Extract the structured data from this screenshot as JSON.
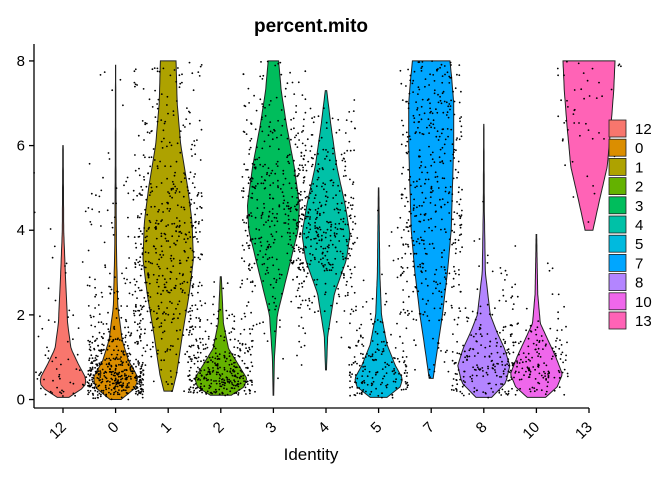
{
  "chart_data": {
    "type": "violin",
    "title": "percent.mito",
    "xlabel": "Identity",
    "ylabel": "",
    "ylim": [
      -0.2,
      8.4
    ],
    "yticks": [
      0,
      2,
      4,
      6,
      8
    ],
    "categories": [
      "12",
      "0",
      "1",
      "2",
      "3",
      "4",
      "5",
      "7",
      "8",
      "10",
      "13"
    ],
    "colors": [
      "#F8766D",
      "#DB8E00",
      "#AEA200",
      "#64B200",
      "#00BD5C",
      "#00C1A7",
      "#00BADE",
      "#00A6FF",
      "#B385FF",
      "#EF67EB",
      "#FF63B6"
    ],
    "legend": {
      "position": "right",
      "entries": [
        "12",
        "0",
        "1",
        "2",
        "3",
        "4",
        "5",
        "7",
        "8",
        "10",
        "13"
      ]
    },
    "series": [
      {
        "name": "12",
        "min": 0.05,
        "max": 6.0,
        "median": 0.5,
        "n": 70
      },
      {
        "name": "0",
        "min": 0.0,
        "max": 7.9,
        "median": 0.5,
        "n": 600
      },
      {
        "name": "1",
        "min": 0.2,
        "max": 8.0,
        "median": 2.8,
        "n": 700
      },
      {
        "name": "2",
        "min": 0.1,
        "max": 2.9,
        "median": 0.5,
        "n": 350
      },
      {
        "name": "3",
        "min": 0.1,
        "max": 8.0,
        "median": 4.5,
        "n": 400
      },
      {
        "name": "4",
        "min": 0.7,
        "max": 7.3,
        "median": 3.9,
        "n": 380
      },
      {
        "name": "5",
        "min": 0.05,
        "max": 5.0,
        "median": 0.5,
        "n": 200
      },
      {
        "name": "7",
        "min": 0.5,
        "max": 8.0,
        "median": 4.0,
        "n": 450
      },
      {
        "name": "8",
        "min": 0.05,
        "max": 6.5,
        "median": 0.9,
        "n": 200
      },
      {
        "name": "10",
        "min": 0.05,
        "max": 3.9,
        "median": 0.6,
        "n": 180
      },
      {
        "name": "13",
        "min": 4.0,
        "max": 8.0,
        "median": 6.5,
        "n": 50
      }
    ]
  }
}
